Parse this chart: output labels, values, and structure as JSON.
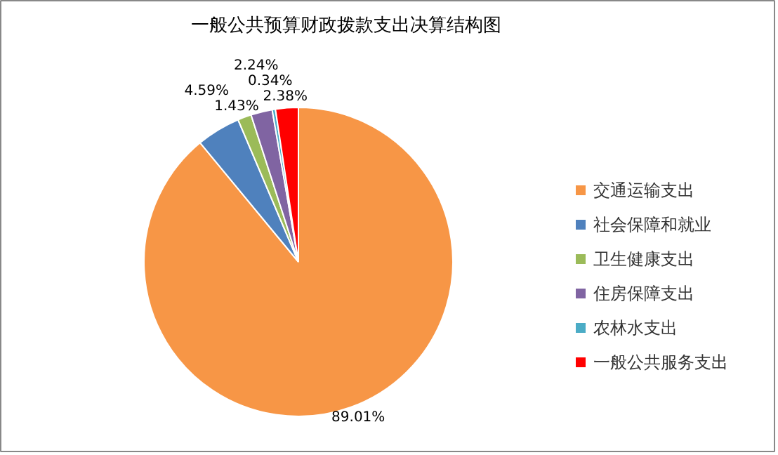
{
  "chart_data": {
    "type": "pie",
    "title": "一般公共预算财政拨款支出决算结构图",
    "categories": [
      "交通运输支出",
      "社会保障和就业",
      "卫生健康支出",
      "住房保障支出",
      "农林水支出",
      "一般公共服务支出"
    ],
    "values": [
      89.01,
      4.59,
      1.43,
      2.24,
      0.34,
      2.38
    ],
    "colors": [
      "#f79646",
      "#4f81bd",
      "#9bbb59",
      "#8064a2",
      "#4bacc6",
      "#ff0000"
    ],
    "value_labels": [
      "89.01%",
      "4.59%",
      "1.43%",
      "2.24%",
      "0.34%",
      "2.38%"
    ],
    "legend": "right"
  }
}
